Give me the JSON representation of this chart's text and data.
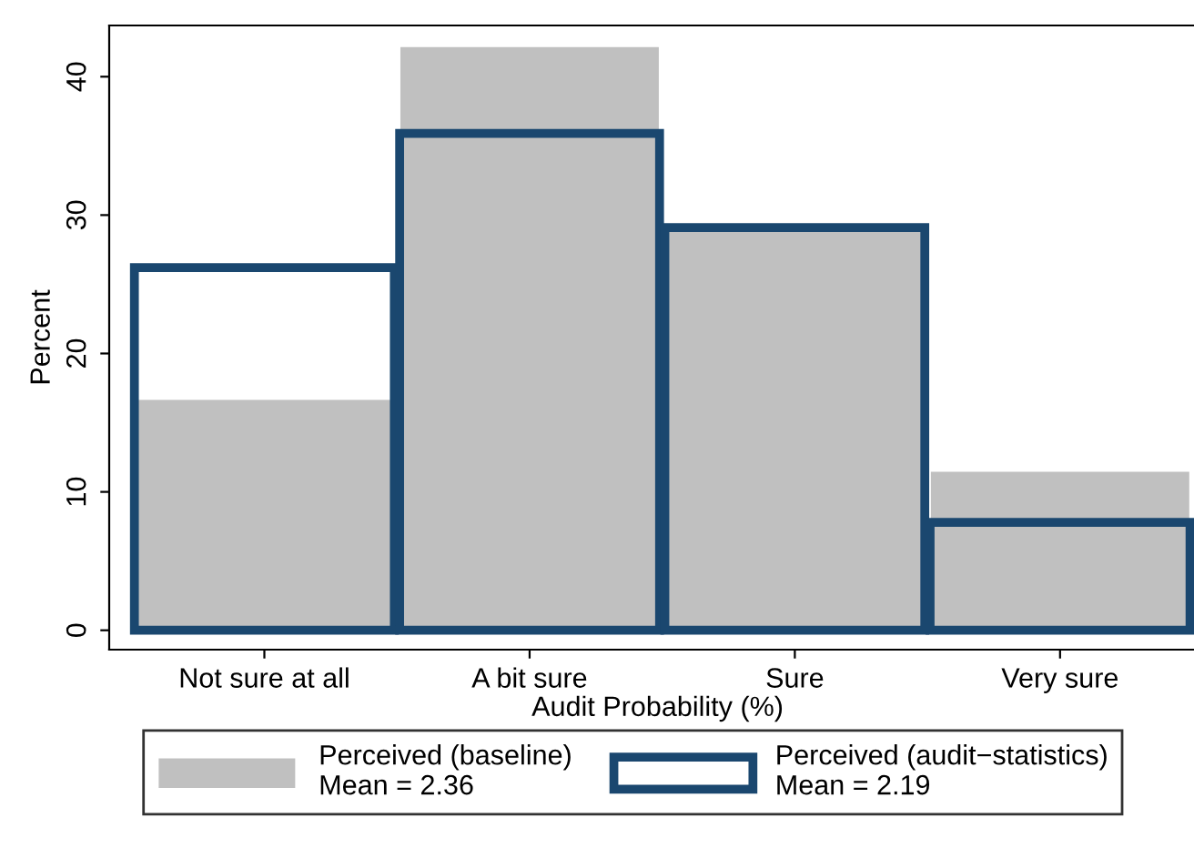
{
  "chart_data": {
    "type": "bar",
    "xlabel": "Audit Probability (%)",
    "ylabel": "Percent",
    "categories": [
      "Not sure at all",
      "A bit sure",
      "Sure",
      "Very sure"
    ],
    "series": [
      {
        "name": "Perceived (baseline)\nMean = 2.36",
        "color": "#c0c0c0",
        "values": [
          16.7,
          42.2,
          28.9,
          11.5
        ]
      },
      {
        "name": "Perceived (audit−statistics)\nMean = 2.19",
        "color": "#1a476f",
        "values": [
          26.2,
          35.9,
          29.1,
          7.8
        ]
      }
    ],
    "ylim": [
      -1.4,
      43.7
    ],
    "yticks": [
      0,
      10,
      20,
      30,
      40
    ],
    "grid": false,
    "legend": "bottom"
  }
}
